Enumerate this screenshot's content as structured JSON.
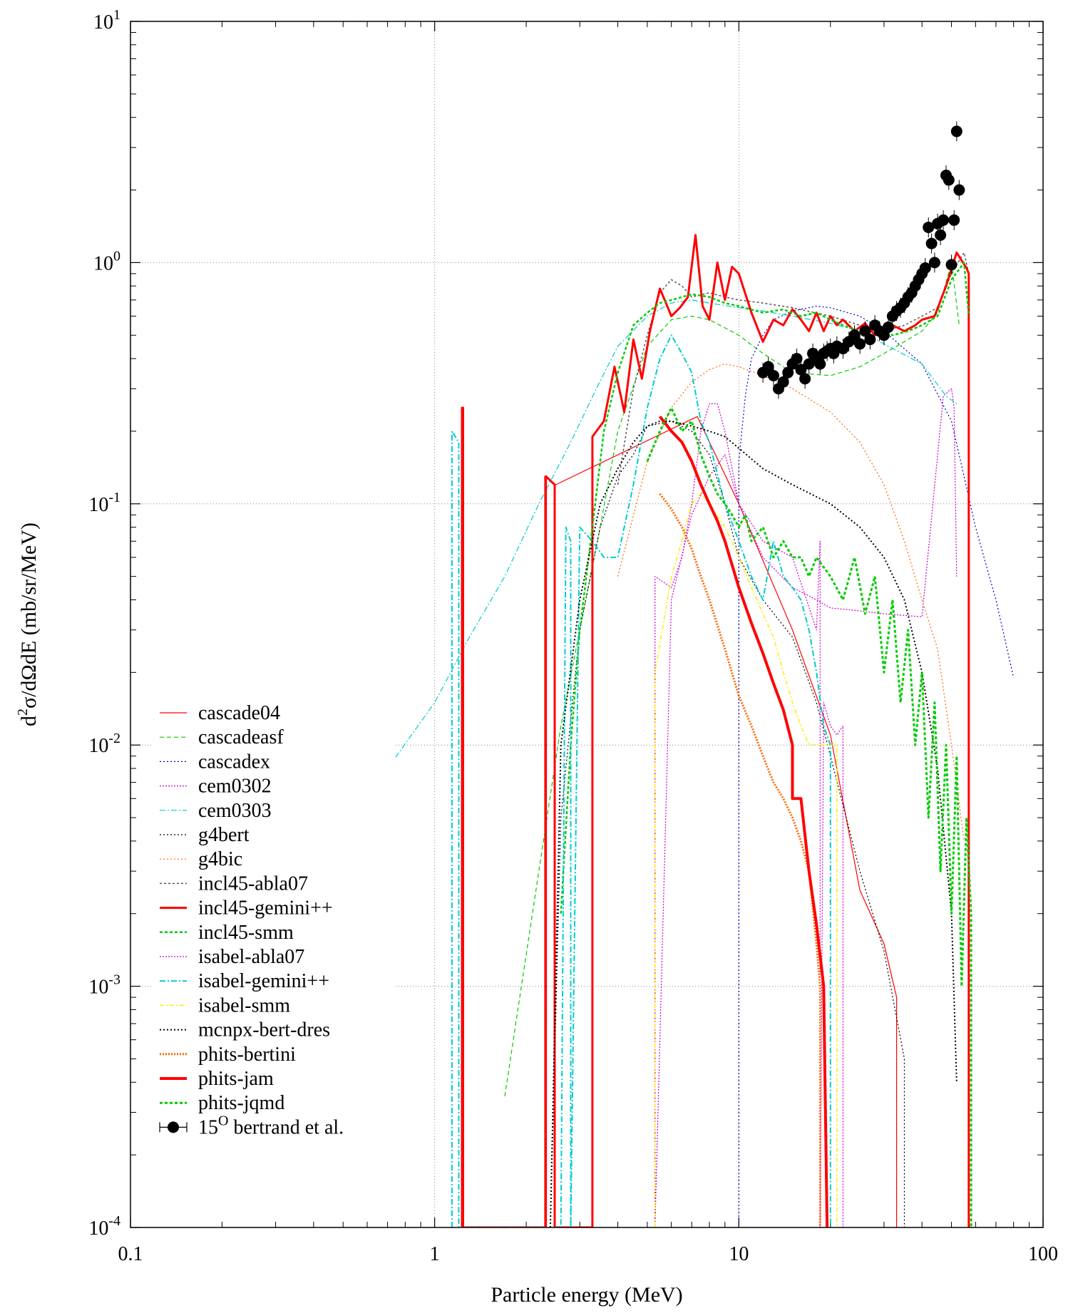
{
  "chart_data": {
    "type": "line",
    "xlabel": "Particle energy (MeV)",
    "ylabel": "d²σ/dΩdE (mb/sr/MeV)",
    "x_scale": "log",
    "y_scale": "log",
    "xlim": [
      0.1,
      100
    ],
    "ylim": [
      0.0001,
      10
    ],
    "grid": true,
    "legend_position": "bottom-left",
    "x_ticks": [
      {
        "value": 0.1,
        "label": "0.1"
      },
      {
        "value": 1,
        "label": "1"
      },
      {
        "value": 10,
        "label": "10"
      },
      {
        "value": 100,
        "label": "100"
      }
    ],
    "y_ticks": [
      {
        "value": 0.0001,
        "base": "10",
        "exp": "-4"
      },
      {
        "value": 0.001,
        "base": "10",
        "exp": "-3"
      },
      {
        "value": 0.01,
        "base": "10",
        "exp": "-2"
      },
      {
        "value": 0.1,
        "base": "10",
        "exp": "-1"
      },
      {
        "value": 1,
        "base": "10",
        "exp": "0"
      },
      {
        "value": 10,
        "base": "10",
        "exp": "1"
      }
    ],
    "series": [
      {
        "name": "cascade04",
        "color": "#ff0000",
        "width": 1.2,
        "dash": "",
        "x": [
          2.3,
          2.3,
          2.5,
          7.3,
          10,
          15,
          20,
          25,
          30,
          33,
          33
        ],
        "y": [
          0.0001,
          0.13,
          0.12,
          0.23,
          0.1,
          0.03,
          0.011,
          0.0025,
          0.0015,
          0.0009,
          0.0001
        ]
      },
      {
        "name": "cascadeasf",
        "color": "#00cc00",
        "width": 1.2,
        "dash": "6,4",
        "x": [
          1.7,
          2.2,
          2.6,
          3.0,
          3.5,
          4.0,
          5.0,
          6.0,
          7.0,
          8.0,
          10,
          12,
          15,
          20,
          25,
          30,
          35,
          40,
          45,
          50,
          53
        ],
        "y": [
          0.00035,
          0.003,
          0.012,
          0.03,
          0.08,
          0.2,
          0.45,
          0.58,
          0.6,
          0.58,
          0.5,
          0.42,
          0.35,
          0.34,
          0.37,
          0.42,
          0.47,
          0.52,
          0.62,
          1.0,
          0.55
        ]
      },
      {
        "name": "cascadex",
        "color": "#0000cc",
        "width": 1.2,
        "dash": "2,3",
        "x": [
          10,
          10,
          10.5,
          11,
          12,
          13,
          15,
          18,
          20,
          25,
          30,
          40,
          50,
          60,
          70,
          80
        ],
        "y": [
          0.0001,
          0.15,
          0.28,
          0.4,
          0.5,
          0.58,
          0.63,
          0.66,
          0.65,
          0.6,
          0.52,
          0.38,
          0.22,
          0.08,
          0.04,
          0.019
        ]
      },
      {
        "name": "cem0302",
        "color": "#cc00cc",
        "width": 1.2,
        "dash": "2,2",
        "x": [
          5.3,
          5.3,
          6.0,
          6.5,
          7.0,
          7.5,
          8.0,
          8.5,
          9.0,
          10,
          12,
          15,
          18,
          20,
          25,
          30,
          40,
          47,
          50,
          51,
          52
        ],
        "y": [
          0.0001,
          0.05,
          0.045,
          0.06,
          0.1,
          0.2,
          0.26,
          0.26,
          0.2,
          0.1,
          0.06,
          0.045,
          0.04,
          0.037,
          0.036,
          0.035,
          0.034,
          0.28,
          0.3,
          0.25,
          0.05
        ]
      },
      {
        "name": "cem0303",
        "color": "#00cccc",
        "width": 1.2,
        "dash": "8,3,2,3",
        "x": [
          0.5,
          0.7,
          1.0,
          1.3,
          1.7,
          2.2,
          2.8,
          3.4,
          4.0,
          5.0,
          6.0,
          7.0,
          8.0,
          10,
          12,
          15,
          20,
          25,
          30,
          40,
          48,
          52
        ],
        "y": [
          0.005,
          0.008,
          0.015,
          0.028,
          0.05,
          0.1,
          0.18,
          0.3,
          0.45,
          0.6,
          0.68,
          0.7,
          0.68,
          0.65,
          0.63,
          0.6,
          0.56,
          0.52,
          0.46,
          0.38,
          0.28,
          0.26
        ]
      },
      {
        "name": "g4bert",
        "color": "#000000",
        "width": 1.2,
        "dash": "2,3",
        "x": [
          2.4,
          2.6,
          3.0,
          3.5,
          4.0,
          4.5,
          5.0,
          6.0,
          7.0,
          8.0,
          9.0,
          10,
          12,
          15,
          18,
          20,
          25,
          30,
          35,
          35
        ],
        "y": [
          0.0001,
          0.005,
          0.03,
          0.08,
          0.13,
          0.16,
          0.21,
          0.22,
          0.2,
          0.16,
          0.1,
          0.06,
          0.04,
          0.028,
          0.015,
          0.009,
          0.003,
          0.0014,
          0.0005,
          0.0001
        ]
      },
      {
        "name": "g4bic",
        "color": "#ff6600",
        "width": 1.2,
        "dash": "2,3",
        "x": [
          4.0,
          5.0,
          6.0,
          7.0,
          8.0,
          9.0,
          10,
          12,
          15,
          20,
          25,
          30,
          35,
          40,
          45,
          50,
          55
        ],
        "y": [
          0.05,
          0.15,
          0.25,
          0.32,
          0.36,
          0.38,
          0.37,
          0.34,
          0.3,
          0.24,
          0.18,
          0.12,
          0.07,
          0.04,
          0.025,
          0.01,
          0.004
        ]
      },
      {
        "name": "incl45-abla07",
        "color": "#555555",
        "width": 1.5,
        "dash": "3,3",
        "x": [
          4.0,
          4.5,
          5.0,
          5.5,
          6.0,
          6.5,
          7.0,
          8.0,
          9.0,
          10,
          12,
          15,
          20,
          25,
          30,
          35,
          40,
          45,
          50,
          55,
          57
        ],
        "y": [
          0.12,
          0.3,
          0.5,
          0.75,
          0.85,
          0.8,
          0.72,
          0.75,
          0.72,
          0.7,
          0.68,
          0.65,
          0.6,
          0.55,
          0.52,
          0.55,
          0.6,
          0.65,
          0.9,
          1.1,
          0.9
        ]
      },
      {
        "name": "incl45-gemini++",
        "color": "#ff0000",
        "width": 3,
        "dash": "",
        "x": [
          1.23,
          1.23,
          1.24,
          1.24,
          2.32,
          2.32,
          2.48,
          2.48,
          3.3,
          3.3,
          3.6,
          3.9,
          4.2,
          4.5,
          4.8,
          5.1,
          5.5,
          6.0,
          6.4,
          6.8,
          7.2,
          7.6,
          8.0,
          8.5,
          9.0,
          9.5,
          10,
          11,
          12,
          13,
          14,
          15,
          16,
          17,
          18,
          19,
          20,
          21,
          22,
          24,
          26,
          28,
          30,
          32,
          35,
          38,
          40,
          44,
          48,
          52,
          56,
          57,
          57
        ],
        "y": [
          0.0001,
          0.25,
          0.25,
          0.0001,
          0.0001,
          0.13,
          0.12,
          0.0001,
          0.0001,
          0.19,
          0.22,
          0.37,
          0.24,
          0.48,
          0.33,
          0.52,
          0.78,
          0.6,
          0.65,
          0.72,
          1.3,
          0.66,
          0.58,
          1.0,
          0.7,
          0.96,
          0.9,
          0.62,
          0.47,
          0.58,
          0.55,
          0.64,
          0.58,
          0.52,
          0.62,
          0.52,
          0.6,
          0.55,
          0.58,
          0.52,
          0.56,
          0.5,
          0.52,
          0.55,
          0.52,
          0.55,
          0.58,
          0.6,
          0.8,
          1.1,
          0.95,
          0.9,
          0.0001
        ]
      },
      {
        "name": "incl45-smm",
        "color": "#00cc00",
        "width": 2.5,
        "dash": "4,3",
        "x": [
          2.6,
          2.8,
          3.0,
          3.3,
          3.6,
          4.0,
          4.5,
          5.0,
          5.5,
          6.0,
          6.5,
          7.0,
          8.0,
          9.0,
          10,
          12,
          14,
          16,
          18,
          20,
          22,
          25,
          28,
          32,
          36,
          40,
          45,
          50,
          55,
          57
        ],
        "y": [
          0.002,
          0.01,
          0.03,
          0.08,
          0.2,
          0.35,
          0.55,
          0.62,
          0.68,
          0.7,
          0.72,
          0.74,
          0.72,
          0.68,
          0.66,
          0.62,
          0.64,
          0.6,
          0.62,
          0.58,
          0.55,
          0.52,
          0.55,
          0.5,
          0.52,
          0.55,
          0.6,
          0.85,
          1.0,
          0.6
        ]
      },
      {
        "name": "isabel-abla07",
        "color": "#cc00cc",
        "width": 1.2,
        "dash": "2,2",
        "x": [
          5.3,
          6.0,
          7.0,
          8.0,
          9.0,
          10,
          12,
          15,
          18,
          18.5,
          18.5,
          19,
          20,
          21,
          22,
          22,
          22.2
        ],
        "y": [
          0.0001,
          0.04,
          0.09,
          0.13,
          0.16,
          0.1,
          0.07,
          0.06,
          0.03,
          0.07,
          0.0001,
          0.015,
          0.012,
          0.011,
          0.012,
          0.0001,
          0.0001
        ]
      },
      {
        "name": "isabel-gemini++",
        "color": "#00cccc",
        "width": 2,
        "dash": "8,3,2,3",
        "x": [
          1.14,
          1.14,
          1.2,
          1.2,
          2.6,
          2.7,
          2.8,
          2.8,
          3.0,
          3.3,
          3.6,
          4.0,
          4.5,
          5.0,
          5.5,
          6.0,
          6.5,
          7.0,
          7.5,
          8.0,
          9.0,
          10,
          11,
          12,
          13,
          14,
          15,
          16,
          17,
          18,
          19,
          20,
          20
        ],
        "y": [
          0.0001,
          0.2,
          0.18,
          0.0001,
          0.0001,
          0.08,
          0.07,
          0.0001,
          0.08,
          0.07,
          0.06,
          0.06,
          0.12,
          0.25,
          0.4,
          0.5,
          0.42,
          0.35,
          0.22,
          0.18,
          0.1,
          0.07,
          0.05,
          0.04,
          0.07,
          0.05,
          0.045,
          0.04,
          0.03,
          0.02,
          0.012,
          0.01,
          0.0001
        ]
      },
      {
        "name": "isabel-smm",
        "color": "#ffee00",
        "width": 1.5,
        "dash": "6,3,2,3",
        "x": [
          5.3,
          5.3,
          6.0,
          6.5,
          7.0,
          7.5,
          8.0,
          9.0,
          10,
          11,
          12,
          13,
          14,
          15,
          16,
          17,
          18,
          19,
          20,
          21,
          21
        ],
        "y": [
          0.0001,
          0.02,
          0.05,
          0.07,
          0.1,
          0.11,
          0.1,
          0.08,
          0.06,
          0.045,
          0.035,
          0.028,
          0.02,
          0.015,
          0.012,
          0.01,
          0.01,
          0.01,
          0.01,
          0.01,
          0.0001
        ]
      },
      {
        "name": "mcnpx-bert-dres",
        "color": "#000000",
        "width": 2,
        "dash": "2,3",
        "x": [
          2.4,
          2.6,
          3.0,
          3.5,
          4.0,
          4.5,
          5.0,
          5.5,
          6.0,
          7.0,
          8.0,
          9.0,
          10,
          12,
          15,
          20,
          25,
          30,
          35,
          40,
          45,
          50,
          52
        ],
        "y": [
          0.0001,
          0.01,
          0.04,
          0.1,
          0.14,
          0.18,
          0.21,
          0.22,
          0.22,
          0.21,
          0.2,
          0.19,
          0.17,
          0.14,
          0.12,
          0.1,
          0.08,
          0.06,
          0.04,
          0.02,
          0.008,
          0.002,
          0.0004
        ]
      },
      {
        "name": "phits-bertini",
        "color": "#ff6600",
        "width": 3,
        "dash": "2,2",
        "x": [
          5.5,
          6.0,
          6.5,
          7.0,
          7.5,
          8.0,
          9.0,
          10,
          11,
          12,
          13,
          14,
          15,
          16,
          17,
          18,
          18.5,
          18.5
        ],
        "y": [
          0.11,
          0.095,
          0.08,
          0.065,
          0.05,
          0.04,
          0.025,
          0.016,
          0.012,
          0.009,
          0.007,
          0.006,
          0.005,
          0.004,
          0.003,
          0.0015,
          0.001,
          0.0001
        ]
      },
      {
        "name": "phits-jam",
        "color": "#ff0000",
        "width": 4,
        "dash": "",
        "x": [
          5.5,
          6.0,
          6.5,
          7.0,
          7.5,
          8.0,
          8.5,
          9.0,
          10,
          11,
          12,
          13,
          14,
          15,
          15,
          16,
          17,
          18,
          19,
          19.5
        ],
        "y": [
          0.23,
          0.2,
          0.18,
          0.15,
          0.12,
          0.1,
          0.085,
          0.07,
          0.045,
          0.032,
          0.024,
          0.018,
          0.014,
          0.01,
          0.006,
          0.006,
          0.003,
          0.0018,
          0.001,
          0.0001
        ]
      },
      {
        "name": "phits-jqmd",
        "color": "#00cc00",
        "width": 3,
        "dash": "4,3",
        "x": [
          5.0,
          5.5,
          6.0,
          6.5,
          7.0,
          7.5,
          8.0,
          8.5,
          9.0,
          9.5,
          10,
          10.5,
          11,
          12,
          13,
          14,
          15,
          16,
          17,
          18,
          20,
          22,
          24,
          26,
          28,
          30,
          32,
          34,
          36,
          38,
          40,
          42,
          44,
          46,
          48,
          50,
          52,
          54,
          56,
          58,
          58
        ],
        "y": [
          0.15,
          0.2,
          0.25,
          0.2,
          0.22,
          0.16,
          0.13,
          0.11,
          0.1,
          0.09,
          0.08,
          0.09,
          0.07,
          0.08,
          0.06,
          0.07,
          0.06,
          0.06,
          0.05,
          0.06,
          0.05,
          0.04,
          0.06,
          0.035,
          0.05,
          0.02,
          0.04,
          0.015,
          0.03,
          0.01,
          0.02,
          0.005,
          0.015,
          0.003,
          0.01,
          0.002,
          0.009,
          0.001,
          0.005,
          0.002,
          0.0001
        ]
      }
    ],
    "points": {
      "name": "15",
      "name_superscript": "O",
      "name_suffix": " bertrand et al.",
      "color": "#000000",
      "x": [
        12,
        12.5,
        13,
        13.5,
        14,
        14.5,
        15,
        15.5,
        16,
        16.5,
        17,
        17.5,
        18,
        18.5,
        19,
        19.5,
        20,
        20.5,
        21,
        22,
        23,
        24,
        25,
        26,
        27,
        28,
        29,
        30,
        31,
        32,
        33,
        34,
        35,
        36,
        37,
        38,
        39,
        40,
        41,
        42,
        43,
        44,
        45,
        46,
        47,
        48,
        49,
        50,
        51,
        52,
        53
      ],
      "y": [
        0.35,
        0.37,
        0.34,
        0.3,
        0.32,
        0.35,
        0.38,
        0.4,
        0.36,
        0.33,
        0.38,
        0.42,
        0.4,
        0.38,
        0.42,
        0.43,
        0.44,
        0.42,
        0.45,
        0.44,
        0.47,
        0.5,
        0.46,
        0.52,
        0.48,
        0.55,
        0.52,
        0.5,
        0.54,
        0.6,
        0.63,
        0.65,
        0.68,
        0.72,
        0.75,
        0.8,
        0.85,
        0.9,
        0.95,
        1.4,
        1.2,
        1.0,
        1.45,
        1.3,
        1.5,
        2.3,
        2.2,
        0.98,
        1.5,
        3.5,
        2.0
      ]
    }
  }
}
